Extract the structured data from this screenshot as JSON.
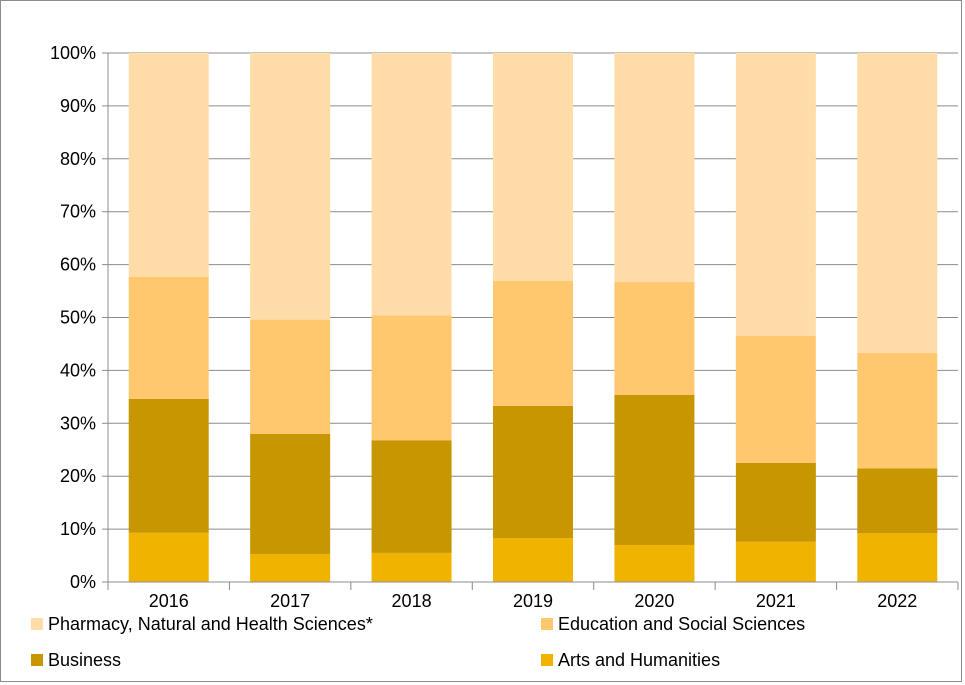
{
  "chart_data": {
    "type": "bar",
    "stacked": true,
    "percent": true,
    "categories": [
      "2016",
      "2017",
      "2018",
      "2019",
      "2020",
      "2021",
      "2022"
    ],
    "series": [
      {
        "name": "Arts and Humanities",
        "color": "#f0b400",
        "values": [
          9.3,
          5.3,
          5.5,
          8.3,
          7.0,
          7.6,
          9.2
        ]
      },
      {
        "name": "Business",
        "color": "#c89600",
        "values": [
          25.3,
          22.7,
          21.3,
          25.0,
          28.4,
          14.9,
          12.3
        ]
      },
      {
        "name": "Education and Social Sciences",
        "color": "#ffc76e",
        "values": [
          23.1,
          21.6,
          23.6,
          23.6,
          21.3,
          24.0,
          21.8
        ]
      },
      {
        "name": "Pharmacy, Natural and Health Sciences*",
        "color": "#ffdca8",
        "values": [
          42.3,
          50.4,
          49.6,
          43.1,
          43.3,
          53.5,
          56.7
        ]
      }
    ],
    "ylim": [
      0,
      100
    ],
    "yticks": [
      "0%",
      "10%",
      "20%",
      "30%",
      "40%",
      "50%",
      "60%",
      "70%",
      "80%",
      "90%",
      "100%"
    ],
    "grid": true,
    "legend_position": "bottom"
  }
}
